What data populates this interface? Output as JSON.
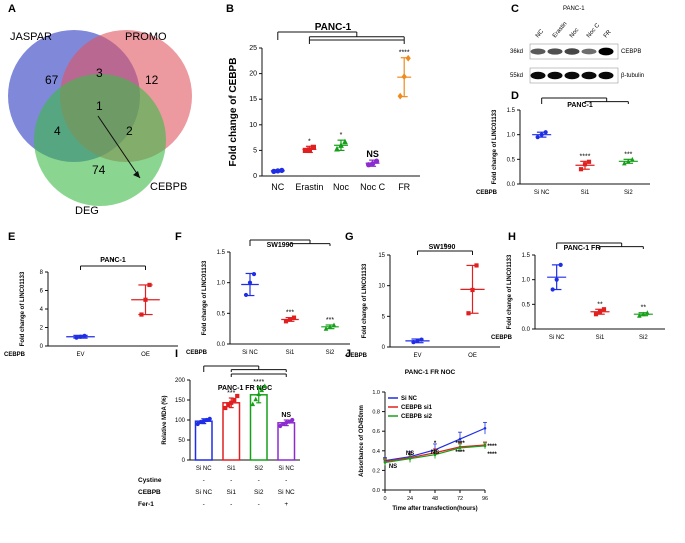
{
  "panel_labels": {
    "A": "A",
    "B": "B",
    "C": "C",
    "D": "D",
    "E": "E",
    "F": "F",
    "G": "G",
    "H": "H",
    "I": "I",
    "J": "J"
  },
  "colors": {
    "nc": "#1f2ee6",
    "erastin": "#e02020",
    "noc": "#16a01a",
    "nocc": "#8c2bcf",
    "fr": "#ef8a1e",
    "black": "#111111",
    "venn_jaspar": "#4a55c9",
    "venn_promo": "#e05560",
    "venn_deg": "#3cbb48"
  },
  "venn": {
    "sets": [
      "JASPAR",
      "PROMO",
      "DEG"
    ],
    "regions": {
      "jaspar_only": "67",
      "promo_only": "12",
      "deg_only": "74",
      "jaspar_promo": "3",
      "jaspar_deg": "4",
      "promo_deg": "2",
      "all": "1"
    },
    "callout": "CEBPB"
  },
  "western": {
    "title": "PANC-1",
    "lanes": [
      "NC",
      "Erastin",
      "Noc",
      "Noc C",
      "FR"
    ],
    "rows": [
      {
        "size": "36kd",
        "name": "CEBPB",
        "band_intensity": [
          0.55,
          0.6,
          0.65,
          0.45,
          1.0
        ]
      },
      {
        "size": "55kd",
        "name": "β-tubulin",
        "band_intensity": [
          0.95,
          0.95,
          0.95,
          0.95,
          0.95
        ]
      }
    ]
  },
  "chart_data": [
    {
      "id": "B",
      "type": "scatter",
      "title": "PANC-1",
      "xlabel": "",
      "ylabel": "Fold change of CEBPB",
      "categories": [
        "NC",
        "Erastin",
        "Noc",
        "Noc C",
        "FR"
      ],
      "ylim": [
        0,
        25
      ],
      "yticks": [
        "0",
        "5",
        "10",
        "15",
        "20",
        "25"
      ],
      "groups": [
        {
          "mean": 1.0,
          "sd": 0.2,
          "points": [
            0.9,
            1.0,
            1.1
          ]
        },
        {
          "mean": 5.2,
          "sd": 0.6,
          "points": [
            5.0,
            5.1,
            5.6
          ]
        },
        {
          "mean": 6.0,
          "sd": 1.0,
          "points": [
            5.3,
            6.0,
            6.7
          ]
        },
        {
          "mean": 2.5,
          "sd": 0.6,
          "points": [
            2.2,
            2.4,
            2.9
          ]
        },
        {
          "mean": 19.3,
          "sd": 3.8,
          "points": [
            15.6,
            19.4,
            23.0
          ]
        }
      ],
      "annotations": [
        "",
        "*",
        "*",
        "NS",
        "****"
      ]
    },
    {
      "id": "D",
      "type": "scatter",
      "title": "PANC-1",
      "ylabel": "Fold change of LINC01133",
      "row_label": "CEBPB",
      "categories": [
        "Si NC",
        "Si1",
        "Si2"
      ],
      "ylim": [
        0,
        1.5
      ],
      "yticks": [
        "0.0",
        "0.5",
        "1.0",
        "1.5"
      ],
      "groups": [
        {
          "mean": 1.0,
          "sd": 0.05,
          "points": [
            0.95,
            1.0,
            1.05
          ]
        },
        {
          "mean": 0.38,
          "sd": 0.08,
          "points": [
            0.3,
            0.4,
            0.45
          ]
        },
        {
          "mean": 0.46,
          "sd": 0.04,
          "points": [
            0.42,
            0.46,
            0.5
          ]
        }
      ],
      "annotations": [
        "",
        "****",
        "***"
      ]
    },
    {
      "id": "E",
      "type": "scatter",
      "title": "PANC-1",
      "ylabel": "Fold change of LINC01133",
      "row_label": "CEBPB",
      "categories": [
        "EV",
        "OE"
      ],
      "ylim": [
        0,
        8
      ],
      "yticks": [
        "0",
        "2",
        "4",
        "6",
        "8"
      ],
      "groups": [
        {
          "mean": 1.0,
          "sd": 0.15,
          "points": [
            0.9,
            1.0,
            1.1
          ]
        },
        {
          "mean": 5.0,
          "sd": 1.6,
          "points": [
            3.4,
            5.0,
            6.6
          ]
        }
      ],
      "annotations": [
        "",
        ""
      ],
      "top_annotation": "*"
    },
    {
      "id": "F",
      "type": "scatter",
      "title": "SW1990",
      "ylabel": "Fold change of LINC01133",
      "row_label": "CEBPB",
      "categories": [
        "Si NC",
        "Si1",
        "Si2"
      ],
      "ylim": [
        0,
        1.5
      ],
      "yticks": [
        "0.0",
        "0.5",
        "1.0",
        "1.5"
      ],
      "groups": [
        {
          "mean": 0.97,
          "sd": 0.18,
          "points": [
            0.8,
            1.0,
            1.14
          ]
        },
        {
          "mean": 0.4,
          "sd": 0.03,
          "points": [
            0.37,
            0.4,
            0.43
          ]
        },
        {
          "mean": 0.28,
          "sd": 0.03,
          "points": [
            0.25,
            0.28,
            0.31
          ]
        }
      ],
      "annotations": [
        "",
        "***",
        "***"
      ]
    },
    {
      "id": "G",
      "type": "scatter",
      "title": "SW1990",
      "ylabel": "Fold change of LINC01133",
      "row_label": "CEBPB",
      "categories": [
        "EV",
        "OE"
      ],
      "ylim": [
        0,
        15
      ],
      "yticks": [
        "0",
        "5",
        "10",
        "15"
      ],
      "groups": [
        {
          "mean": 1.0,
          "sd": 0.3,
          "points": [
            0.8,
            1.0,
            1.2
          ]
        },
        {
          "mean": 9.4,
          "sd": 3.9,
          "points": [
            5.5,
            9.3,
            13.3
          ]
        }
      ],
      "annotations": [
        "",
        ""
      ],
      "top_annotation": "*"
    },
    {
      "id": "H",
      "type": "scatter",
      "title": "PANC-1 FR",
      "ylabel": "Fold change of LINC01133",
      "row_label": "CEBPB",
      "categories": [
        "Si NC",
        "Si1",
        "Si2"
      ],
      "ylim": [
        0,
        1.5
      ],
      "yticks": [
        "0.0",
        "0.5",
        "1.0",
        "1.5"
      ],
      "groups": [
        {
          "mean": 1.05,
          "sd": 0.25,
          "points": [
            0.8,
            1.0,
            1.3
          ]
        },
        {
          "mean": 0.35,
          "sd": 0.05,
          "points": [
            0.3,
            0.35,
            0.4
          ]
        },
        {
          "mean": 0.3,
          "sd": 0.03,
          "points": [
            0.27,
            0.3,
            0.33
          ]
        }
      ],
      "annotations": [
        "",
        "**",
        "**"
      ]
    },
    {
      "id": "I",
      "type": "bar",
      "title": "PANC-1 FR NOC",
      "ylabel": "Relative MDA (%)",
      "categories": [
        "Si NC",
        "Si1",
        "Si2",
        "Si NC"
      ],
      "ylim": [
        0,
        200
      ],
      "yticks": [
        "0",
        "50",
        "100",
        "150",
        "200"
      ],
      "groups": [
        {
          "mean": 97,
          "sd": 6,
          "points": [
            90,
            95,
            97,
            100,
            103
          ]
        },
        {
          "mean": 143,
          "sd": 12,
          "points": [
            130,
            137,
            143,
            150,
            160
          ]
        },
        {
          "mean": 163,
          "sd": 20,
          "points": [
            140,
            152,
            165,
            175,
            185
          ]
        },
        {
          "mean": 93,
          "sd": 7,
          "points": [
            85,
            90,
            93,
            96,
            100
          ]
        }
      ],
      "annotations": [
        "",
        "***",
        "****",
        "NS"
      ],
      "condition_rows": [
        {
          "label": "Cystine",
          "values": [
            "-",
            "-",
            "-",
            "-"
          ]
        },
        {
          "label": "CEBPB",
          "values": [
            "Si NC",
            "Si1",
            "Si2",
            "Si NC"
          ]
        },
        {
          "label": "Fer-1",
          "values": [
            "-",
            "-",
            "-",
            "+"
          ]
        }
      ]
    },
    {
      "id": "J",
      "type": "line",
      "title": "PANC-1 FR NOC",
      "xlabel": "Time after transfection(hours)",
      "ylabel": "Absorbance of OD450nm",
      "x": [
        0,
        24,
        48,
        72,
        96
      ],
      "xticks": [
        "0",
        "24",
        "48",
        "72",
        "96"
      ],
      "ylim": [
        0,
        1.0
      ],
      "yticks": [
        "0.0",
        "0.2",
        "0.4",
        "0.6",
        "0.8",
        "1.0"
      ],
      "legend_position": "top-left",
      "series": [
        {
          "name": "Si NC",
          "values": [
            0.3,
            0.34,
            0.41,
            0.52,
            0.63
          ],
          "sd": [
            0.03,
            0.05,
            0.06,
            0.07,
            0.06
          ]
        },
        {
          "name": "CEBPB si1",
          "values": [
            0.29,
            0.33,
            0.38,
            0.44,
            0.46
          ],
          "sd": [
            0.03,
            0.04,
            0.04,
            0.04,
            0.03
          ]
        },
        {
          "name": "CEBPB si2",
          "values": [
            0.28,
            0.32,
            0.36,
            0.43,
            0.45
          ],
          "sd": [
            0.03,
            0.04,
            0.04,
            0.04,
            0.03
          ]
        }
      ],
      "annotations": [
        {
          "x": 0,
          "labels": [
            "NS"
          ]
        },
        {
          "x": 24,
          "labels": [
            "NS"
          ]
        },
        {
          "x": 48,
          "labels": [
            "*",
            "NS"
          ]
        },
        {
          "x": 72,
          "labels": [
            "****",
            "****"
          ]
        },
        {
          "x": 96,
          "labels": [
            "****",
            "****"
          ]
        }
      ]
    }
  ]
}
